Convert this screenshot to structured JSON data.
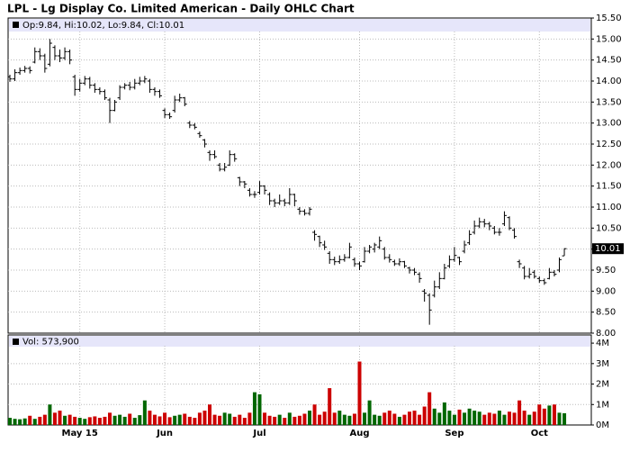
{
  "chart_data": {
    "type": "ohlc",
    "title": "LPL - Lg Display Co. Limited American - Daily OHLC Chart",
    "legend_text": "Op:9.84, Hi:10.02, Lo:9.84, Cl:10.01",
    "volume_text": "Vol: 573,900",
    "color": "#000000",
    "up_color": "#006600",
    "down_color": "#cc0000",
    "grid": true,
    "categories": [
      null,
      null,
      null,
      null,
      null,
      null,
      null,
      null,
      null,
      null,
      null,
      null,
      null,
      null,
      "May 15",
      null,
      null,
      null,
      null,
      null,
      null,
      null,
      null,
      null,
      null,
      null,
      null,
      null,
      null,
      null,
      null,
      "Jun",
      null,
      null,
      null,
      null,
      null,
      null,
      null,
      null,
      null,
      null,
      null,
      null,
      null,
      null,
      null,
      null,
      null,
      null,
      "Jul",
      null,
      null,
      null,
      null,
      null,
      null,
      null,
      null,
      null,
      null,
      null,
      null,
      null,
      null,
      null,
      null,
      null,
      null,
      null,
      "Aug",
      null,
      null,
      null,
      null,
      null,
      null,
      null,
      null,
      null,
      null,
      null,
      null,
      null,
      null,
      null,
      null,
      null,
      null,
      "Sep",
      null,
      null,
      null,
      null,
      null,
      null,
      null,
      null,
      null,
      null,
      null,
      null,
      null,
      null,
      null,
      null,
      "Oct",
      null,
      null,
      null,
      null,
      null
    ],
    "open": [
      14.1,
      14.05,
      14.2,
      14.25,
      14.3,
      14.45,
      14.7,
      14.6,
      14.4,
      14.8,
      14.6,
      14.55,
      14.7,
      14.1,
      13.8,
      13.95,
      14.05,
      13.9,
      13.8,
      13.75,
      13.55,
      13.3,
      13.6,
      13.85,
      13.9,
      13.85,
      13.95,
      14.0,
      14.0,
      13.8,
      13.75,
      13.3,
      13.2,
      13.3,
      13.55,
      13.6,
      13.0,
      12.95,
      12.75,
      12.6,
      12.3,
      12.25,
      12.0,
      11.9,
      12.0,
      12.25,
      11.7,
      11.6,
      11.4,
      11.3,
      11.35,
      11.5,
      11.3,
      11.15,
      11.1,
      11.15,
      11.1,
      11.3,
      10.95,
      10.9,
      10.85,
      10.4,
      10.3,
      10.1,
      9.9,
      9.75,
      9.7,
      9.75,
      9.8,
      9.75,
      9.65,
      9.7,
      9.95,
      10.0,
      10.05,
      10.0,
      9.8,
      9.7,
      9.65,
      9.7,
      9.55,
      9.5,
      9.4,
      9.0,
      8.9,
      8.9,
      9.1,
      9.3,
      9.6,
      9.75,
      9.8,
      9.95,
      10.15,
      10.4,
      10.55,
      10.65,
      10.6,
      10.5,
      10.4,
      10.6,
      10.75,
      10.45,
      9.7,
      9.55,
      9.35,
      9.45,
      9.3,
      9.25,
      9.3,
      9.45,
      9.5,
      9.84
    ],
    "high": [
      14.15,
      14.28,
      14.32,
      14.36,
      14.35,
      14.8,
      14.78,
      14.65,
      15.0,
      14.85,
      14.75,
      14.8,
      14.75,
      14.15,
      14.05,
      14.12,
      14.1,
      13.95,
      13.85,
      13.8,
      13.6,
      13.55,
      13.9,
      13.95,
      13.98,
      14.05,
      14.1,
      14.12,
      14.05,
      13.85,
      13.8,
      13.35,
      13.25,
      13.65,
      13.7,
      13.62,
      13.05,
      13.0,
      12.8,
      12.62,
      12.35,
      12.35,
      12.05,
      12.05,
      12.35,
      12.28,
      11.72,
      11.62,
      11.45,
      11.38,
      11.62,
      11.52,
      11.35,
      11.2,
      11.3,
      11.2,
      11.45,
      11.32,
      11.0,
      10.95,
      11.0,
      10.45,
      10.32,
      10.2,
      9.95,
      9.82,
      9.85,
      9.88,
      10.15,
      9.8,
      9.7,
      10.05,
      10.1,
      10.15,
      10.3,
      10.05,
      9.88,
      9.75,
      9.78,
      9.72,
      9.58,
      9.55,
      9.45,
      9.05,
      8.95,
      9.25,
      9.45,
      9.65,
      9.85,
      10.05,
      9.82,
      10.2,
      10.45,
      10.68,
      10.75,
      10.72,
      10.65,
      10.55,
      10.5,
      10.9,
      10.78,
      10.5,
      9.75,
      9.6,
      9.55,
      9.5,
      9.35,
      9.3,
      9.55,
      9.5,
      9.8,
      10.02
    ],
    "low": [
      13.98,
      14.0,
      14.15,
      14.2,
      14.18,
      14.42,
      14.5,
      14.2,
      14.35,
      14.5,
      14.45,
      14.5,
      14.4,
      13.65,
      13.75,
      13.9,
      13.82,
      13.72,
      13.68,
      13.55,
      13.0,
      13.28,
      13.55,
      13.8,
      13.78,
      13.8,
      13.9,
      13.95,
      13.72,
      13.65,
      13.6,
      13.12,
      13.1,
      13.25,
      13.5,
      13.4,
      12.88,
      12.85,
      12.65,
      12.42,
      12.1,
      12.15,
      11.85,
      11.85,
      11.98,
      12.08,
      11.5,
      11.45,
      11.25,
      11.22,
      11.3,
      11.3,
      11.05,
      11.0,
      11.05,
      11.02,
      11.05,
      11.02,
      10.82,
      10.8,
      10.8,
      10.2,
      10.05,
      9.98,
      9.65,
      9.62,
      9.65,
      9.7,
      9.78,
      9.58,
      9.5,
      9.68,
      9.9,
      9.92,
      10.0,
      9.75,
      9.68,
      9.6,
      9.6,
      9.55,
      9.42,
      9.38,
      9.2,
      8.75,
      8.2,
      8.85,
      9.05,
      9.28,
      9.55,
      9.7,
      9.62,
      9.9,
      10.1,
      10.35,
      10.5,
      10.52,
      10.45,
      10.35,
      10.32,
      10.55,
      10.45,
      10.25,
      9.55,
      9.28,
      9.3,
      9.3,
      9.2,
      9.15,
      9.28,
      9.35,
      9.45,
      9.84
    ],
    "close": [
      14.05,
      14.2,
      14.25,
      14.3,
      14.25,
      14.7,
      14.6,
      14.3,
      14.9,
      14.6,
      14.55,
      14.7,
      14.5,
      13.8,
      13.95,
      14.05,
      13.9,
      13.8,
      13.75,
      13.6,
      13.3,
      13.5,
      13.85,
      13.9,
      13.85,
      13.95,
      14.0,
      14.05,
      13.8,
      13.75,
      13.65,
      13.2,
      13.15,
      13.55,
      13.6,
      13.45,
      12.95,
      12.9,
      12.7,
      12.5,
      12.25,
      12.2,
      11.9,
      11.95,
      12.25,
      12.15,
      11.6,
      11.55,
      11.3,
      11.3,
      11.5,
      11.4,
      11.15,
      11.1,
      11.15,
      11.1,
      11.3,
      11.15,
      10.9,
      10.85,
      10.95,
      10.35,
      10.15,
      10.05,
      9.75,
      9.7,
      9.75,
      9.8,
      10.05,
      9.65,
      9.6,
      9.95,
      10.05,
      10.1,
      10.2,
      9.8,
      9.75,
      9.65,
      9.7,
      9.6,
      9.5,
      9.45,
      9.3,
      8.95,
      8.55,
      9.1,
      9.3,
      9.55,
      9.75,
      9.85,
      9.7,
      10.1,
      10.35,
      10.55,
      10.65,
      10.6,
      10.55,
      10.4,
      10.4,
      10.8,
      10.5,
      10.3,
      9.65,
      9.35,
      9.4,
      9.35,
      9.25,
      9.2,
      9.45,
      9.4,
      9.75,
      10.01
    ],
    "volume": [
      350000,
      300000,
      280000,
      320000,
      450000,
      300000,
      400000,
      500000,
      1000000,
      600000,
      700000,
      450000,
      500000,
      400000,
      350000,
      300000,
      380000,
      420000,
      350000,
      400000,
      600000,
      450000,
      500000,
      400000,
      550000,
      350000,
      480000,
      1200000,
      700000,
      500000,
      420000,
      600000,
      380000,
      450000,
      500000,
      550000,
      400000,
      350000,
      600000,
      700000,
      1000000,
      500000,
      450000,
      600000,
      550000,
      400000,
      500000,
      350000,
      600000,
      1600000,
      1500000,
      600000,
      450000,
      400000,
      500000,
      350000,
      600000,
      400000,
      450000,
      550000,
      700000,
      1000000,
      500000,
      650000,
      1800000,
      600000,
      700000,
      500000,
      450000,
      550000,
      3100000,
      600000,
      1200000,
      500000,
      450000,
      600000,
      700000,
      550000,
      400000,
      500000,
      650000,
      700000,
      500000,
      900000,
      1600000,
      800000,
      600000,
      1100000,
      700000,
      500000,
      750000,
      600000,
      800000,
      700000,
      650000,
      500000,
      600000,
      550000,
      700000,
      500000,
      650000,
      600000,
      1200000,
      700000,
      500000,
      650000,
      1000000,
      800000,
      950000,
      1000000,
      600000,
      573900
    ],
    "ylim": [
      8,
      15.5
    ],
    "yticks": [
      {
        "value": 8,
        "label": "8.00"
      },
      {
        "value": 8.5,
        "label": "8.50"
      },
      {
        "value": 9,
        "label": "9.00"
      },
      {
        "value": 9.5,
        "label": "9.50"
      },
      {
        "value": 10,
        "label": "10.00"
      },
      {
        "value": 10.5,
        "label": "10.50"
      },
      {
        "value": 11,
        "label": "11.00"
      },
      {
        "value": 11.5,
        "label": "11.50"
      },
      {
        "value": 12,
        "label": "12.00"
      },
      {
        "value": 12.5,
        "label": "12.50"
      },
      {
        "value": 13,
        "label": "13.00"
      },
      {
        "value": 13.5,
        "label": "13.50"
      },
      {
        "value": 14,
        "label": "14.00"
      },
      {
        "value": 14.5,
        "label": "14.50"
      },
      {
        "value": 15,
        "label": "15.00"
      },
      {
        "value": 15.5,
        "label": "15.50"
      }
    ],
    "y2lim": [
      0,
      4400000
    ],
    "y2ticks": [
      {
        "value": 0,
        "label": "0M"
      },
      {
        "value": 1000000,
        "label": "1M"
      },
      {
        "value": 2000000,
        "label": "2M"
      },
      {
        "value": 3000000,
        "label": "3M"
      },
      {
        "value": 4000000,
        "label": "4M"
      }
    ]
  }
}
